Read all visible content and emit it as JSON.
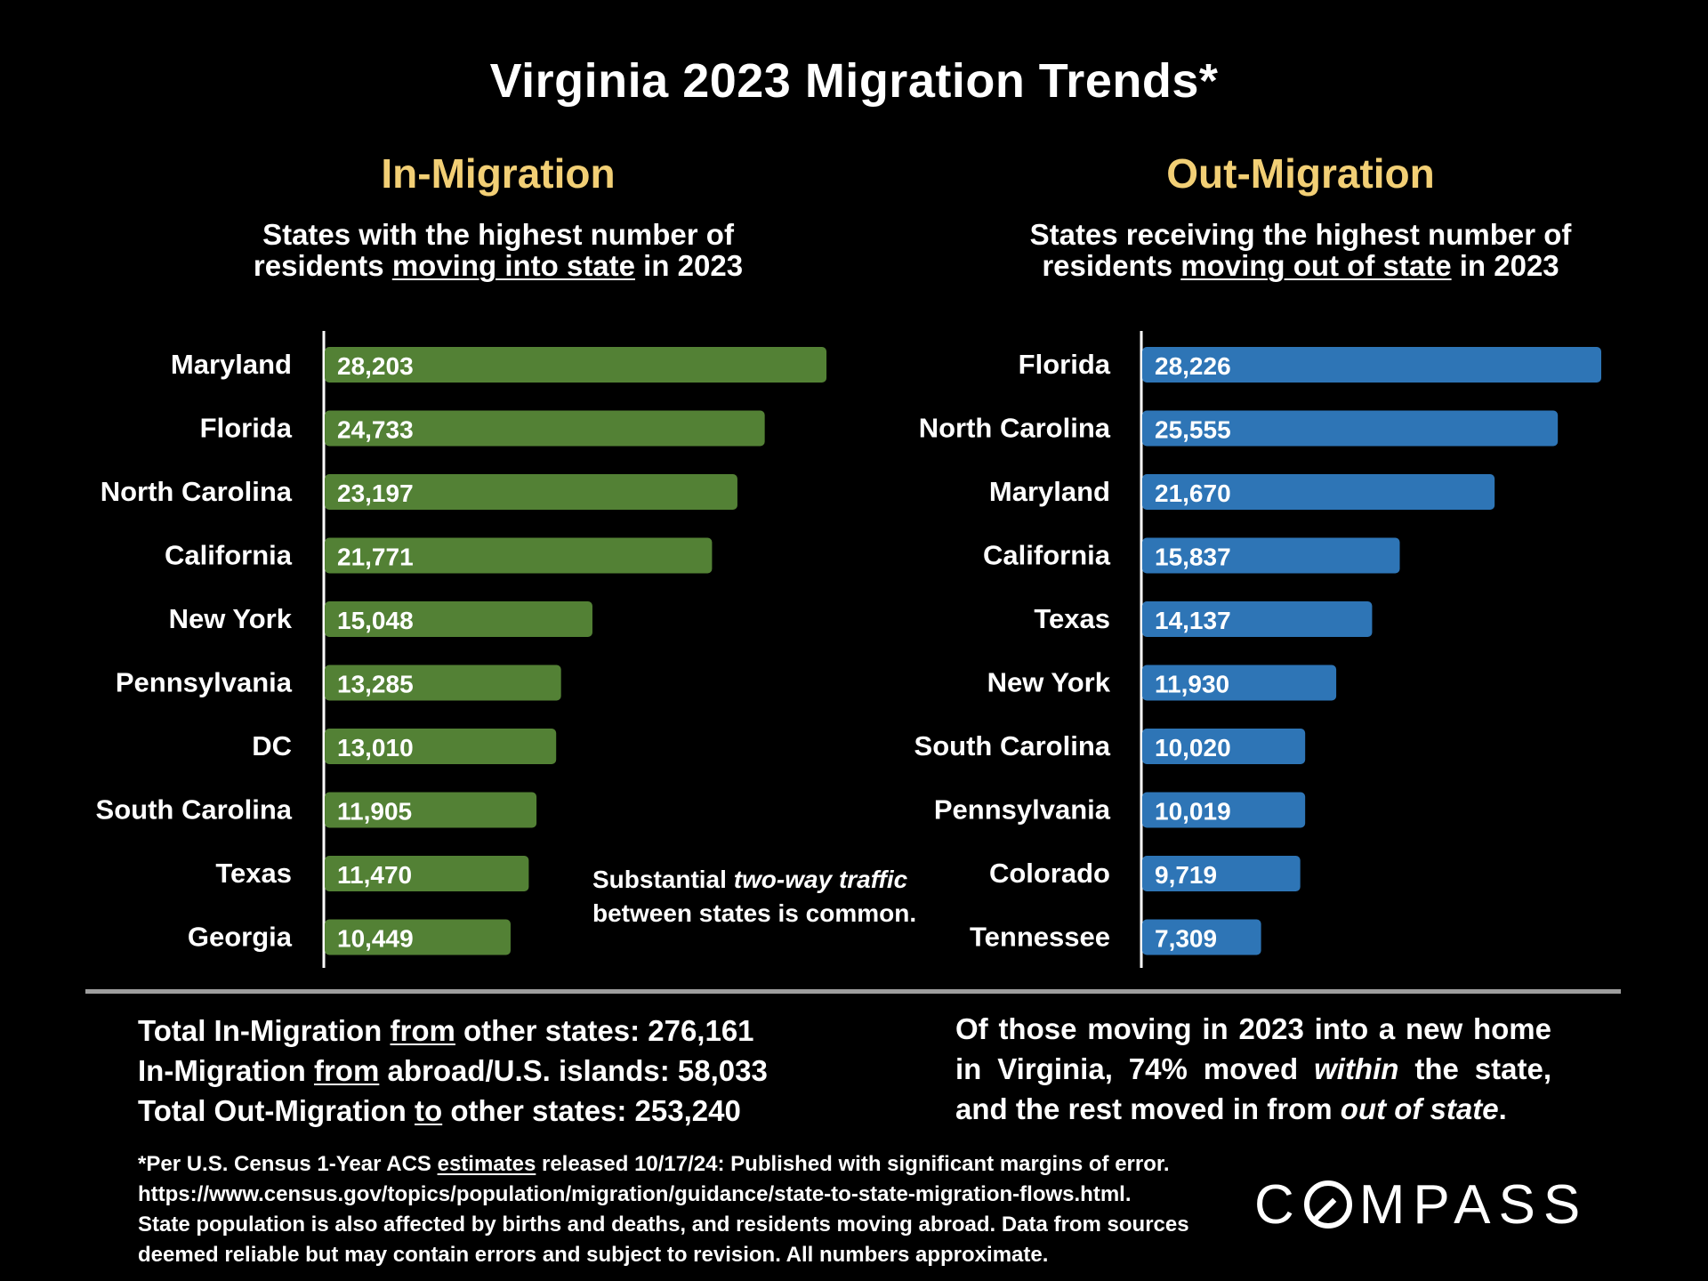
{
  "title": "Virginia 2023 Migration Trends*",
  "chart_data": [
    {
      "type": "bar",
      "orientation": "horizontal",
      "title": "In-Migration",
      "subtitle_line1": "States with the highest number of",
      "subtitle_prefix": "residents ",
      "subtitle_underlined": "moving into state",
      "subtitle_suffix": " in 2023",
      "color": "#538135",
      "categories": [
        "Maryland",
        "Florida",
        "North Carolina",
        "California",
        "New York",
        "Pennsylvania",
        "DC",
        "South Carolina",
        "Texas",
        "Georgia"
      ],
      "values": [
        28203,
        24733,
        23197,
        21771,
        15048,
        13285,
        13010,
        11905,
        11470,
        10449
      ],
      "labels": [
        "28,203",
        "24,733",
        "23,197",
        "21,771",
        "15,048",
        "13,285",
        "13,010",
        "11,905",
        "11,470",
        "10,449"
      ],
      "xlim": [
        0,
        30000
      ]
    },
    {
      "type": "bar",
      "orientation": "horizontal",
      "title": "Out-Migration",
      "subtitle_line1": "States receiving the highest number of",
      "subtitle_prefix": "residents ",
      "subtitle_underlined": "moving out of state",
      "subtitle_suffix": " in 2023",
      "color": "#2e75b6",
      "categories": [
        "Florida",
        "North Carolina",
        "Maryland",
        "California",
        "Texas",
        "New York",
        "South Carolina",
        "Pennsylvania",
        "Colorado",
        "Tennessee"
      ],
      "values": [
        28226,
        25555,
        21670,
        15837,
        14137,
        11930,
        10020,
        10019,
        9719,
        7309
      ],
      "labels": [
        "28,226",
        "25,555",
        "21,670",
        "15,837",
        "14,137",
        "11,930",
        "10,020",
        "10,019",
        "9,719",
        "7,309"
      ],
      "xlim": [
        0,
        28226
      ]
    }
  ],
  "note": {
    "prefix": "Substantial ",
    "italic": "two-way traffic",
    "line2": "between states is common."
  },
  "stats_left": [
    {
      "a": "Total In-Migration ",
      "u": "from",
      "b": " other states: 276,161"
    },
    {
      "a": "In-Migration ",
      "u": "from",
      "b": " abroad/U.S. islands: 58,033"
    },
    {
      "a": "Total Out-Migration ",
      "u": "to",
      "b": " other states: 253,240"
    }
  ],
  "stats_right": {
    "part1": "Of those moving in 2023 into a new home in Virginia, 74% moved ",
    "italic1": "within",
    "part2": " the state, and the rest moved in from ",
    "italic2": "out of state",
    "part3": "."
  },
  "footnote": {
    "l1a": "*Per U.S. Census 1-Year ACS ",
    "l1u": "estimates",
    "l1b": " released 10/17/24: Published with significant margins of error.",
    "l2": "https://www.census.gov/topics/population/migration/guidance/state-to-state-migration-flows.html.",
    "l3": "State population is also affected by births and deaths, and residents moving abroad. Data from sources",
    "l4": "deemed reliable but may contain errors and subject to revision. All numbers approximate."
  },
  "logo": {
    "left": "C",
    "right": "MPASS"
  }
}
